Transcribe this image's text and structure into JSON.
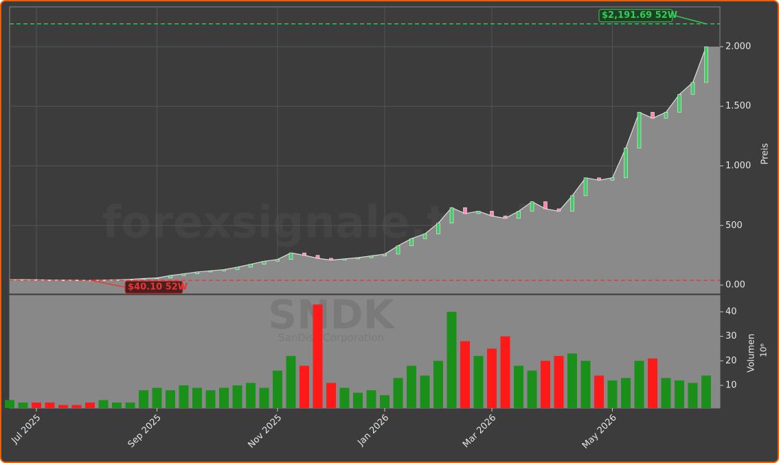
{
  "chart_data": {
    "type": "candlestick-volume",
    "watermark": "forexsignale.trade",
    "symbol": "SNDK",
    "company": "SanDisk Corporation",
    "y_label": "Preis",
    "y2_label": "Volumen",
    "y2_exponent_label": "10⁶",
    "categories": [
      null,
      null,
      "Jul 2025",
      null,
      null,
      null,
      null,
      null,
      null,
      null,
      null,
      "Sep 2025",
      null,
      null,
      null,
      null,
      null,
      null,
      null,
      null,
      "Nov 2025",
      null,
      null,
      null,
      null,
      null,
      null,
      null,
      "Jan 2026",
      null,
      null,
      null,
      null,
      null,
      null,
      null,
      "Mar 2026",
      null,
      null,
      null,
      null,
      null,
      null,
      null,
      null,
      "May 2026",
      null,
      null,
      null,
      null,
      null,
      null,
      null
    ],
    "series": [
      {
        "name": "Preis",
        "color": "#8a8a8a",
        "values": [
          45,
          46,
          44,
          43,
          42,
          41,
          40,
          42,
          44,
          48,
          55,
          60,
          80,
          95,
          110,
          120,
          130,
          150,
          175,
          200,
          215,
          270,
          250,
          225,
          210,
          220,
          230,
          245,
          260,
          330,
          390,
          430,
          520,
          650,
          600,
          620,
          580,
          560,
          620,
          700,
          640,
          620,
          750,
          900,
          880,
          900,
          1150,
          1450,
          1400,
          1450,
          1600,
          1700,
          2000
        ]
      },
      {
        "name": "Volumen",
        "axis": "y2",
        "up_color": "#1a8f1a",
        "down_color": "#ff1a1a",
        "values": [
          4,
          3,
          3,
          3,
          2,
          2,
          3,
          4,
          3,
          3,
          8,
          9,
          8,
          10,
          9,
          8,
          9,
          10,
          11,
          9,
          16,
          22,
          18,
          43,
          11,
          9,
          7,
          8,
          6,
          13,
          18,
          14,
          20,
          40,
          28,
          22,
          25,
          30,
          18,
          16,
          20,
          22,
          23,
          20,
          14,
          12,
          13,
          20,
          21,
          13,
          12,
          11,
          14
        ]
      }
    ],
    "ylim": [
      -69,
      2334
    ],
    "yticks": [
      {
        "value": 0,
        "label": "0.00"
      },
      500,
      {
        "value": 1000,
        "label": "1.000"
      },
      {
        "value": 1500,
        "label": "1.500"
      },
      {
        "value": 2000,
        "label": "2.000"
      }
    ],
    "y2lim": [
      0.75,
      46.7
    ],
    "y2ticks": [
      10,
      20,
      30,
      40
    ],
    "annotations": [
      {
        "value": 2191.69,
        "label": "$2,191.69 52W",
        "color": "#33cc55"
      },
      {
        "value": 40.1,
        "label": "$40.10 52W",
        "color": "#ee3333"
      }
    ],
    "grid": true
  }
}
